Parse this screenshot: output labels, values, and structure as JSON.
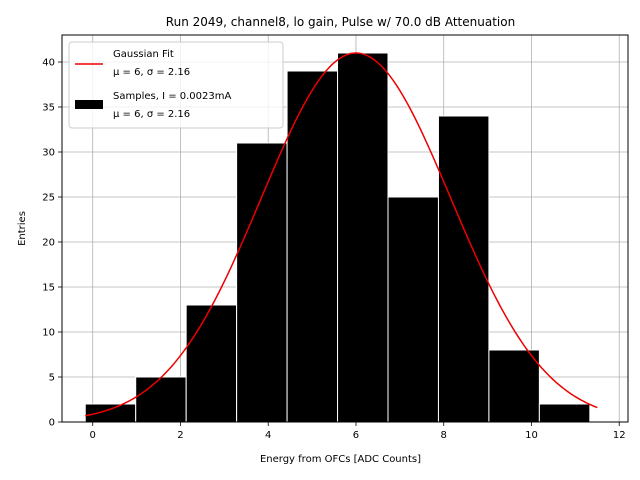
{
  "chart_data": {
    "type": "bar",
    "title": "Run 2049, channel8, lo gain, Pulse w/ 70.0 dB Attenuation",
    "xlabel": "Energy from OFCs [ADC Counts]",
    "ylabel": "Entries",
    "xlim": [
      -0.7,
      12.2
    ],
    "ylim": [
      0,
      43
    ],
    "xticks": [
      0,
      2,
      4,
      6,
      8,
      10,
      12
    ],
    "yticks": [
      0,
      5,
      10,
      15,
      20,
      25,
      30,
      35,
      40
    ],
    "grid": true,
    "bin_edges": [
      -0.17,
      0.98,
      2.13,
      3.28,
      4.43,
      5.58,
      6.73,
      7.88,
      9.03,
      10.18,
      11.33
    ],
    "values": [
      2,
      5,
      13,
      31,
      39,
      41,
      25,
      34,
      8,
      2
    ],
    "bar_color": "#000000",
    "bar_edge_color": "#ffffff",
    "fit": {
      "name": "Gaussian Fit",
      "mu": 6,
      "sigma": 2.16,
      "amplitude": 41,
      "x_range": [
        -0.17,
        11.5
      ],
      "color": "#ee0000"
    },
    "legend": {
      "location": "top-left",
      "entries": [
        {
          "line1": "Gaussian Fit",
          "line2": "μ = 6, σ = 2.16",
          "kind": "line",
          "color": "#ee0000"
        },
        {
          "line1": "Samples, I = 0.0023mA",
          "line2": "μ = 6, σ = 2.16",
          "kind": "patch",
          "color": "#000000"
        }
      ]
    }
  }
}
